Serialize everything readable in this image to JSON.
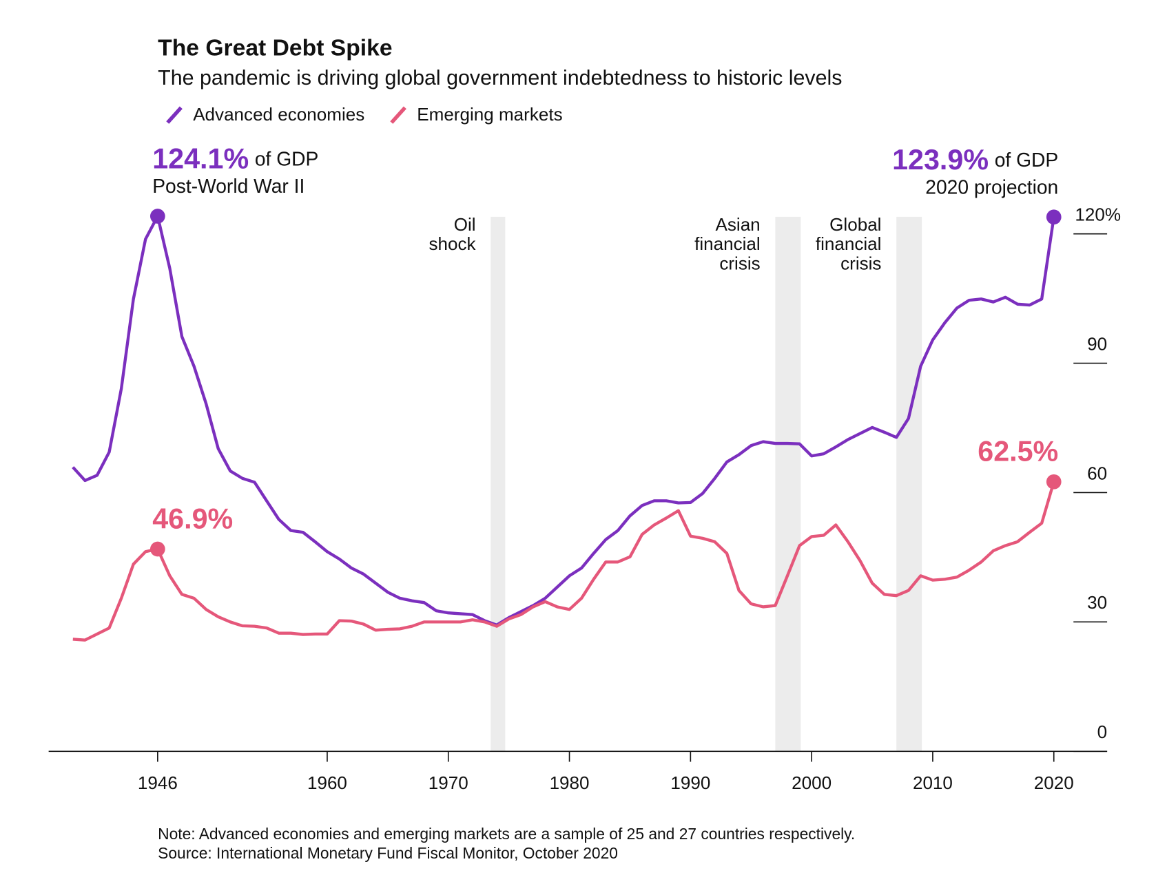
{
  "chart_data": {
    "type": "line",
    "title": "The Great Debt Spike",
    "subtitle": "The pandemic is driving global government indebtedness to historic levels",
    "x": [
      1939,
      1940,
      1941,
      1942,
      1943,
      1944,
      1945,
      1946,
      1947,
      1948,
      1949,
      1950,
      1951,
      1952,
      1953,
      1954,
      1955,
      1956,
      1957,
      1958,
      1959,
      1960,
      1961,
      1962,
      1963,
      1964,
      1965,
      1966,
      1967,
      1968,
      1969,
      1970,
      1971,
      1972,
      1973,
      1974,
      1975,
      1976,
      1977,
      1978,
      1979,
      1980,
      1981,
      1982,
      1983,
      1984,
      1985,
      1986,
      1987,
      1988,
      1989,
      1990,
      1991,
      1992,
      1993,
      1994,
      1995,
      1996,
      1997,
      1998,
      1999,
      2000,
      2001,
      2002,
      2003,
      2004,
      2005,
      2006,
      2007,
      2008,
      2009,
      2010,
      2011,
      2012,
      2013,
      2014,
      2015,
      2016,
      2017,
      2018,
      2019,
      2020
    ],
    "series": [
      {
        "name": "Advanced economies",
        "color": "#7b2fbe",
        "values": [
          65.9,
          62.8,
          64.0,
          69.4,
          84.1,
          104.9,
          118.8,
          124.1,
          112,
          96.2,
          89.3,
          80.6,
          70.2,
          65.0,
          63.3,
          62.4,
          58.1,
          53.8,
          51.2,
          50.8,
          48.6,
          46.3,
          44.6,
          42.5,
          41.1,
          39.0,
          36.9,
          35.5,
          34.9,
          34.5,
          32.6,
          32.1,
          31.9,
          31.7,
          30.3,
          29.3,
          31.0,
          32.4,
          33.8,
          35.5,
          38.1,
          40.7,
          42.5,
          45.9,
          49.1,
          51.2,
          54.6,
          57.0,
          58.1,
          58.1,
          57.6,
          57.7,
          59.8,
          63.3,
          67.1,
          68.8,
          70.9,
          71.8,
          71.4,
          71.4,
          71.3,
          68.5,
          69.0,
          70.6,
          72.3,
          73.7,
          75.1,
          74.0,
          72.8,
          77.2,
          89.3,
          95.4,
          99.4,
          102.8,
          104.6,
          104.9,
          104.2,
          105.3,
          103.7,
          103.5,
          104.9,
          123.9
        ]
      },
      {
        "name": "Emerging markets",
        "color": "#e5577a",
        "values": [
          26.0,
          25.8,
          27.2,
          28.6,
          35.5,
          43.4,
          46.3,
          46.9,
          40.7,
          36.4,
          35.5,
          32.9,
          31.2,
          30.0,
          29.1,
          29.0,
          28.6,
          27.4,
          27.4,
          27.1,
          27.2,
          27.2,
          30.3,
          30.2,
          29.5,
          28.1,
          28.3,
          28.4,
          29.0,
          30.0,
          30.0,
          30.0,
          30.0,
          30.5,
          30.0,
          29.0,
          30.7,
          31.7,
          33.5,
          34.7,
          33.5,
          32.9,
          35.5,
          39.9,
          43.9,
          43.9,
          45.1,
          50.3,
          52.5,
          54.1,
          55.8,
          49.9,
          49.4,
          48.6,
          45.9,
          37.3,
          34.2,
          33.5,
          33.8,
          40.7,
          47.7,
          49.8,
          50.1,
          52.5,
          48.6,
          44.2,
          39.0,
          36.4,
          36.1,
          37.3,
          40.7,
          39.7,
          39.9,
          40.4,
          42.0,
          43.9,
          46.5,
          47.7,
          48.6,
          50.8,
          52.9,
          62.5
        ]
      }
    ],
    "xlim": [
      1937,
      2024.4
    ],
    "xticks": [
      1946,
      1960,
      1970,
      1980,
      1990,
      2000,
      2010,
      2020
    ],
    "ylim": [
      0,
      125
    ],
    "yticks": [
      0,
      30,
      60,
      90,
      {
        "value": 120,
        "label": "120%"
      }
    ],
    "shaded": [
      {
        "range": [
          1973.5,
          1974.7
        ],
        "label_lines": [
          "Oil",
          "shock"
        ]
      },
      {
        "range": [
          1997.0,
          1999.1
        ],
        "label_lines": [
          "Asian",
          "financial",
          "crisis"
        ]
      },
      {
        "range": [
          2007.0,
          2009.1
        ],
        "label_lines": [
          "Global",
          "financial",
          "crisis"
        ]
      }
    ],
    "annotations": [
      {
        "x": 1946,
        "y": 124.1,
        "label": "124.1%",
        "suffix": "of GDP",
        "note": "Post-World War II",
        "color": "#7b2fbe"
      },
      {
        "x": 2020,
        "y": 123.9,
        "label": "123.9%",
        "suffix": "of GDP",
        "note": "2020 projection",
        "color": "#7b2fbe"
      },
      {
        "x": 1946,
        "y": 46.9,
        "label": "46.9%",
        "color": "#e5577a"
      },
      {
        "x": 2020,
        "y": 62.5,
        "label": "62.5%",
        "color": "#e5577a"
      }
    ],
    "notes": [
      "Note: Advanced economies and emerging markets are a sample of 25 and 27 countries respectively.",
      "Source: International Monetary Fund Fiscal Monitor, October 2020"
    ]
  }
}
